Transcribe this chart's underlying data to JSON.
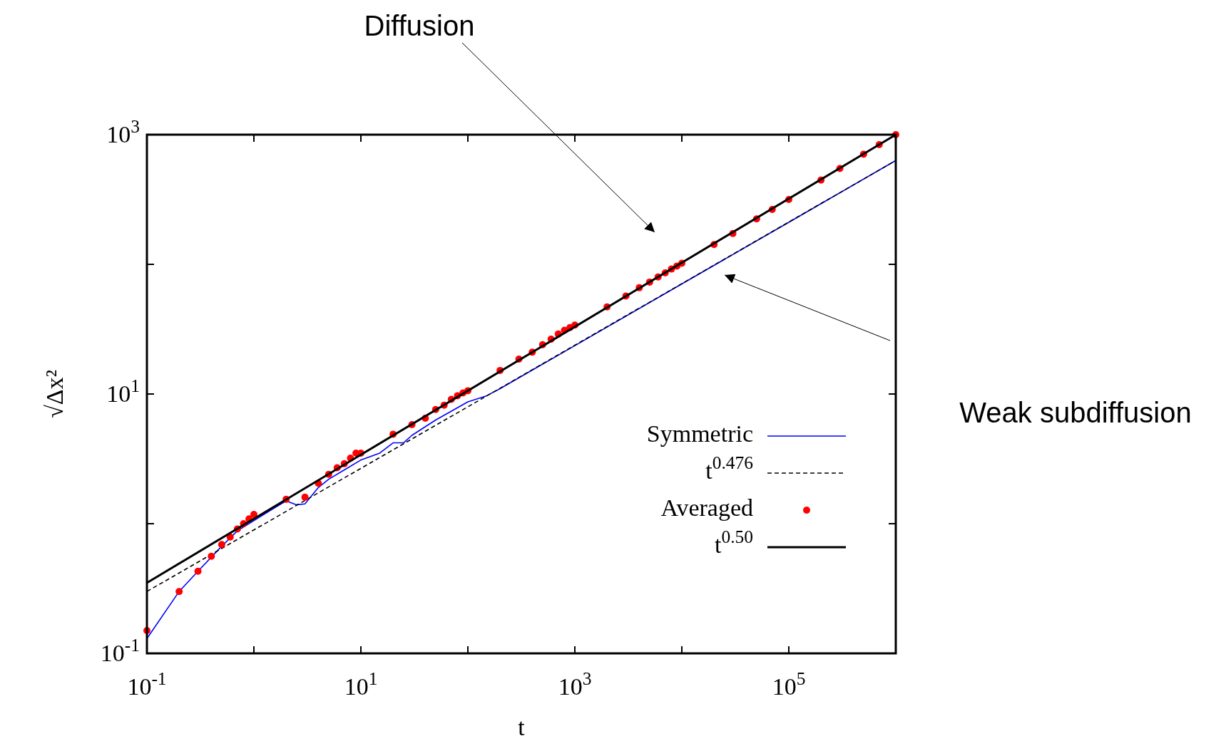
{
  "chart_data": {
    "type": "line",
    "xlabel": "t",
    "ylabel": "√Δx²",
    "log": "xy",
    "grid": false,
    "legend": "bottom right",
    "xlim": [
      0.1,
      1000000
    ],
    "ylim": [
      0.1,
      1000
    ],
    "xticks": [
      {
        "value": 0.1,
        "label": "10$^{-1}$"
      },
      {
        "value": 1,
        "label": null
      },
      {
        "value": 10,
        "label": "10$^{1}$"
      },
      {
        "value": 100,
        "label": null
      },
      {
        "value": 1000,
        "label": "10$^{3}$"
      },
      {
        "value": 10000,
        "label": null
      },
      {
        "value": 100000,
        "label": "10$^{5}$"
      },
      {
        "value": 1000000,
        "label": null
      }
    ],
    "yticks": [
      {
        "value": 0.1,
        "label": "10$^{-1}$"
      },
      {
        "value": 1,
        "label": null
      },
      {
        "value": 10,
        "label": "10$^{1}$"
      },
      {
        "value": 100,
        "label": null
      },
      {
        "value": 1000,
        "label": "10$^{3}$"
      }
    ],
    "annotations": [
      "Diffusion",
      "Weak subdiffusion"
    ],
    "series": [
      {
        "name": "Symmetric",
        "color": "#0000ff",
        "line_style": "solid",
        "x": [
          0.1,
          0.2,
          0.3,
          0.5,
          0.7,
          1.5,
          2,
          2.5,
          3,
          4,
          5,
          7,
          10,
          15,
          20,
          25,
          30,
          50,
          100,
          150,
          200,
          500,
          1000,
          10000,
          100000,
          1000000
        ],
        "values": [
          0.13,
          0.3,
          0.43,
          0.67,
          0.88,
          1.3,
          1.5,
          1.4,
          1.42,
          1.9,
          2.2,
          2.6,
          3.1,
          3.5,
          4.2,
          4.2,
          4.8,
          6.3,
          8.7,
          9.7,
          11,
          17,
          23.6,
          70.6,
          211,
          632
        ]
      },
      {
        "name": "t$^{0.476}$",
        "color": "#000000",
        "line_style": "dashed",
        "x": [
          0.1,
          1000000
        ],
        "values": [
          0.3,
          632
        ]
      },
      {
        "name": "Averaged",
        "type": "scatter",
        "color": "#ff0000",
        "marker": "circle",
        "x": [
          0.1,
          0.2,
          0.3,
          0.4,
          0.5,
          0.6,
          0.7,
          0.8,
          0.9,
          1,
          2,
          3,
          4,
          5,
          6,
          7,
          8,
          9,
          10,
          20,
          30,
          40,
          50,
          60,
          70,
          80,
          90,
          100,
          200,
          300,
          400,
          500,
          600,
          700,
          800,
          900,
          1000,
          2000,
          3000,
          4000,
          5000,
          6000,
          7000,
          8000,
          9000,
          10000,
          20000,
          30000,
          50000,
          70000,
          100000,
          200000,
          300000,
          500000,
          700000,
          1000000
        ],
        "values": [
          0.15,
          0.3,
          0.43,
          0.56,
          0.69,
          0.79,
          0.91,
          1.0,
          1.09,
          1.18,
          1.54,
          1.6,
          2.05,
          2.4,
          2.7,
          2.9,
          3.2,
          3.5,
          3.5,
          4.9,
          5.8,
          6.5,
          7.6,
          8.2,
          9.1,
          9.7,
          10.2,
          10.6,
          15.2,
          18.6,
          21,
          24,
          26.5,
          29,
          31,
          32.5,
          34,
          47,
          57,
          66,
          73,
          80,
          86,
          92,
          97,
          102,
          142,
          173,
          224,
          265,
          316,
          447,
          548,
          707,
          837,
          1000
        ]
      },
      {
        "name": "t$^{0.50}$",
        "color": "#000000",
        "line_style": "solid",
        "x": [
          0.1,
          1000000
        ],
        "values": [
          0.35,
          1000
        ]
      }
    ]
  }
}
